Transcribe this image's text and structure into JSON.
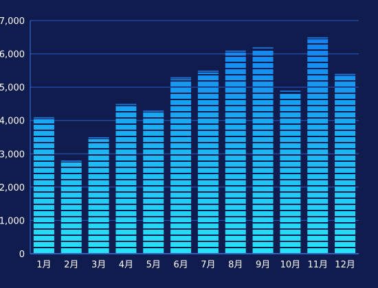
{
  "chart_data": {
    "type": "bar",
    "categories": [
      "1月",
      "2月",
      "3月",
      "4月",
      "5月",
      "6月",
      "7月",
      "8月",
      "9月",
      "10月",
      "11月",
      "12月"
    ],
    "values": [
      4100,
      2800,
      3500,
      4500,
      4300,
      5300,
      5500,
      6100,
      6200,
      4900,
      6500,
      5400
    ],
    "y_ticks": [
      "0",
      "1,000",
      "2,000",
      "3,000",
      "4,000",
      "5,000",
      "6,000",
      "7,000"
    ],
    "ylim": [
      0,
      7000
    ],
    "grid": true,
    "colors": {
      "background": "#111c4e",
      "bar_top": "#1283f0",
      "bar_bottom": "#27e3f6",
      "cap": "#1d6fd0",
      "grid": "#2a5ac8",
      "axis": "#3c79e6",
      "text": "#ffffff"
    }
  }
}
